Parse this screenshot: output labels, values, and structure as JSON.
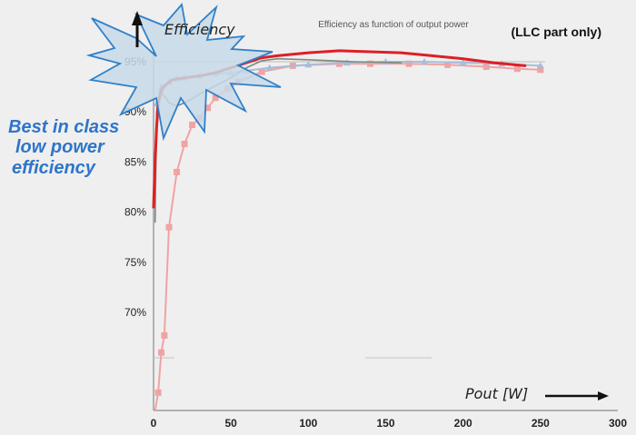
{
  "chart_data": {
    "type": "line",
    "title": "Efficiency as function of output power",
    "subtitle": "(LLC part only)",
    "xlabel": "Pout [W]",
    "ylabel": "Efficiency",
    "callout": [
      "Best in class",
      "low power",
      "efficiency"
    ],
    "xlim": [
      0,
      300
    ],
    "ylim": [
      60,
      98
    ],
    "x_ticks": [
      "0",
      "50",
      "100",
      "150",
      "200",
      "250",
      "300"
    ],
    "y_ticks": [
      {
        "value": 95,
        "label": "95%"
      },
      {
        "value": 90,
        "label": "90%"
      },
      {
        "value": 85,
        "label": "85%"
      },
      {
        "value": 80,
        "label": "80%"
      },
      {
        "value": 75,
        "label": "75%"
      },
      {
        "value": 70,
        "label": "70%"
      }
    ],
    "grid": false,
    "series": [
      {
        "color": "#f0a3a3",
        "marker": "square",
        "x": [
          1,
          3,
          5,
          7,
          10,
          15,
          20,
          25,
          30,
          35,
          40,
          48,
          55,
          70,
          90,
          120,
          140,
          165,
          190,
          215,
          235,
          250
        ],
        "y": [
          55,
          62,
          66,
          67.7,
          78.5,
          84,
          86.8,
          88.7,
          89.4,
          90.4,
          91.4,
          92.3,
          93,
          94,
          94.6,
          94.8,
          94.8,
          94.8,
          94.7,
          94.5,
          94.3,
          94.2
        ]
      },
      {
        "color": "#a9bcd9",
        "marker": "triangle",
        "x": [
          2,
          5,
          10,
          15,
          20,
          30,
          40,
          50,
          60,
          75,
          100,
          125,
          150,
          175,
          200,
          225,
          250
        ],
        "y": [
          90.8,
          92.4,
          93,
          93.3,
          93.4,
          93.6,
          93.8,
          93.9,
          94.1,
          94.4,
          94.7,
          94.9,
          95,
          95,
          94.9,
          94.8,
          94.6
        ]
      },
      {
        "color": "#7d8a80",
        "marker": "none",
        "x": [
          1,
          2,
          3,
          4,
          5,
          6,
          8,
          10,
          15,
          20,
          25,
          30,
          40,
          50,
          60,
          70,
          80,
          100,
          130,
          160
        ],
        "y": [
          79,
          90,
          91.3,
          91.6,
          92.7,
          91.7,
          91.4,
          90.9,
          90.6,
          90.9,
          91.3,
          91.8,
          92.6,
          93.4,
          94.4,
          95.1,
          95.3,
          95.2,
          95,
          94.9
        ]
      },
      {
        "color": "#dd1f26",
        "marker": "none",
        "x": [
          0,
          1,
          2,
          3,
          5,
          8,
          12,
          20,
          30,
          40,
          50,
          60,
          70,
          80,
          100,
          120,
          140,
          160,
          180,
          200,
          220,
          240
        ],
        "y": [
          80.5,
          85,
          88.5,
          90.8,
          92.2,
          92.7,
          93.2,
          93.4,
          93.6,
          93.9,
          94.4,
          94.9,
          95.4,
          95.6,
          95.9,
          96.1,
          96,
          95.9,
          95.6,
          95.3,
          94.9,
          94.6
        ]
      }
    ]
  }
}
